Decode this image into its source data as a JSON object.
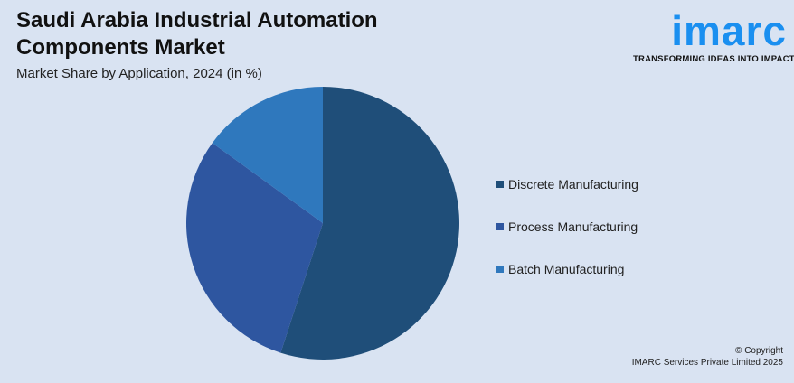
{
  "header": {
    "title": "Saudi Arabia Industrial Automation Components Market",
    "subtitle": "Market Share by Application, 2024 (in %)"
  },
  "logo": {
    "word": "imarc",
    "tagline": "TRANSFORMING IDEAS INTO IMPACT"
  },
  "footer": {
    "copyright": "© Copyright",
    "company": "IMARC Services Private Limited 2025"
  },
  "chart_data": {
    "type": "pie",
    "title": "Saudi Arabia Industrial Automation Components Market",
    "subtitle": "Market Share by Application, 2024 (in %)",
    "categories": [
      "Discrete Manufacturing",
      "Process Manufacturing",
      "Batch Manufacturing"
    ],
    "values": [
      55,
      30,
      15
    ],
    "colors": [
      "#1f4e79",
      "#2e56a0",
      "#2f78bd"
    ],
    "legend_position": "right"
  }
}
